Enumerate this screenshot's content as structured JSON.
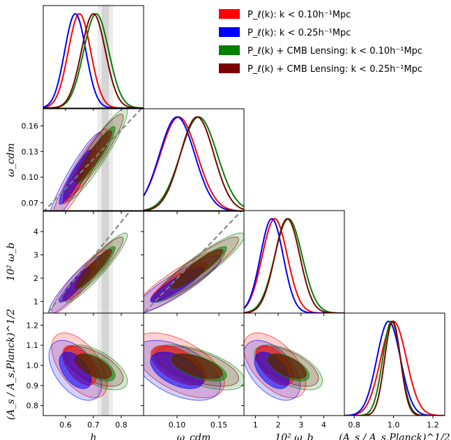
{
  "chart_data": {
    "type": "triangle",
    "parameters": [
      {
        "key": "h",
        "label": "h",
        "range": [
          0.52,
          0.88
        ],
        "ticks": [
          "0.6",
          "0.7",
          "0.8"
        ],
        "tick_values": [
          0.6,
          0.7,
          0.8
        ]
      },
      {
        "key": "omega_cdm",
        "label": "ω_cdm",
        "range": [
          0.06,
          0.18
        ],
        "ticks": [
          "0.10",
          "0.15"
        ],
        "tick_values": [
          0.1,
          0.15
        ],
        "yticks": [
          "0.07",
          "0.10",
          "0.13",
          "0.16"
        ],
        "ytick_values": [
          0.07,
          0.1,
          0.13,
          0.16
        ]
      },
      {
        "key": "omega_b",
        "label": "10² ω_b",
        "range": [
          0.5,
          4.9
        ],
        "ticks": [
          "1",
          "2",
          "3",
          "4"
        ],
        "tick_values": [
          1,
          2,
          3,
          4
        ]
      },
      {
        "key": "As",
        "label": "(A_s / A_s,Planck)^1/2",
        "range": [
          0.75,
          1.26
        ],
        "ticks": [
          "0.8",
          "1.0",
          "1.2"
        ],
        "tick_values": [
          0.8,
          1.0,
          1.2
        ],
        "yticks": [
          "0.8",
          "0.9",
          "1.0",
          "1.1",
          "1.2"
        ],
        "ytick_values": [
          0.8,
          0.9,
          1.0,
          1.1,
          1.2
        ]
      }
    ],
    "series": [
      {
        "name": "P_ℓ(k): k < 0.10h⁻¹Mpc",
        "color": "#ff0000",
        "mean": [
          0.65,
          0.102,
          1.85,
          1.0
        ],
        "sigma": [
          0.04,
          0.022,
          0.55,
          0.065
        ],
        "corr": {
          "0-1": 0.93,
          "0-2": 0.92,
          "1-2": 0.9,
          "0-3": -0.55,
          "1-3": -0.55,
          "2-3": -0.55
        }
      },
      {
        "name": "P_ℓ(k): k < 0.25h⁻¹Mpc",
        "color": "#0000ff",
        "mean": [
          0.635,
          0.1,
          1.72,
          0.975
        ],
        "sigma": [
          0.038,
          0.021,
          0.5,
          0.06
        ],
        "corr": {
          "0-1": 0.93,
          "0-2": 0.92,
          "1-2": 0.9,
          "0-3": -0.5,
          "1-3": -0.5,
          "2-3": -0.5
        }
      },
      {
        "name": "P_ℓ(k) + CMB Lensing: k < 0.10h⁻¹Mpc",
        "color": "#008000",
        "mean": [
          0.71,
          0.126,
          2.45,
          0.99
        ],
        "sigma": [
          0.045,
          0.022,
          0.6,
          0.045
        ],
        "corr": {
          "0-1": 0.93,
          "0-2": 0.93,
          "1-2": 0.92,
          "0-3": -0.6,
          "1-3": -0.6,
          "2-3": -0.6
        }
      },
      {
        "name": "P_ℓ(k) + CMB Lensing: k < 0.25h⁻¹Mpc",
        "color": "#7b0000",
        "mean": [
          0.7,
          0.124,
          2.4,
          0.995
        ],
        "sigma": [
          0.043,
          0.02,
          0.55,
          0.04
        ],
        "corr": {
          "0-1": 0.93,
          "0-2": 0.93,
          "1-2": 0.92,
          "0-3": -0.6,
          "1-3": -0.6,
          "2-3": -0.6
        }
      }
    ],
    "h_prior_band": {
      "inner": [
        0.73,
        0.755
      ],
      "outer": [
        0.715,
        0.77
      ]
    },
    "degeneracy_lines": [
      {
        "row": 1,
        "col": 0,
        "from": [
          0.52,
          0.059
        ],
        "to": [
          0.88,
          0.183
        ]
      },
      {
        "row": 2,
        "col": 0,
        "from": [
          0.52,
          0.28
        ],
        "to": [
          0.88,
          5.6
        ]
      },
      {
        "row": 2,
        "col": 1,
        "from": [
          0.055,
          0.3
        ],
        "to": [
          0.18,
          5.0
        ]
      }
    ],
    "legend_position": "top-right"
  }
}
